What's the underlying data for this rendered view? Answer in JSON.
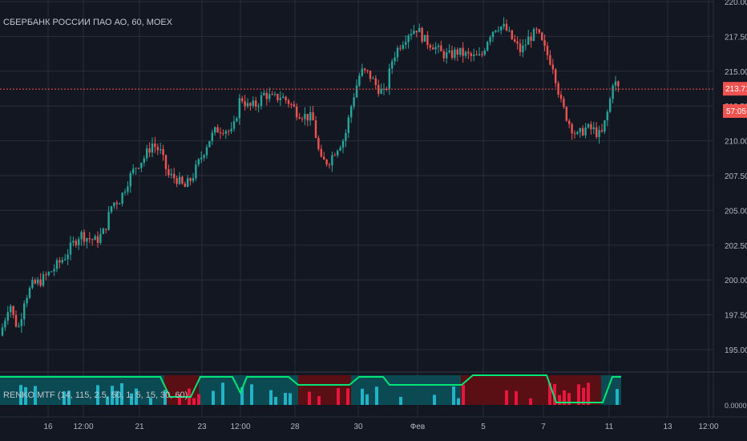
{
  "header": {
    "symbol_title": "СБЕРБАНК РОССИИ ПАО АО, 60, MOEX"
  },
  "indicator": {
    "title": "RENKO MTF (14, 115, 2.5, 50, 1, 5, 15, 30, 60)",
    "axis_label": "0.0000",
    "colors": {
      "bull": "#00e676",
      "bear": "#ff1744",
      "teal": "#26c6da",
      "dark_red": "#5a0f14",
      "dark_teal": "#0b4a52"
    }
  },
  "price_badges": {
    "last_price": "213.71",
    "countdown": "57:05",
    "color": "#ef5350"
  },
  "colors": {
    "up": "#26a69a",
    "down": "#ef5350",
    "background": "#131722",
    "grid": "#2a2e39"
  },
  "chart_data": {
    "type": "candlestick",
    "ylim": [
      193.5,
      220
    ],
    "y_ticks": [
      "220.00",
      "217.50",
      "215.00",
      "212.50",
      "210.00",
      "207.50",
      "205.00",
      "202.50",
      "200.00",
      "197.50",
      "195.00"
    ],
    "x_ticks": [
      "16",
      "12:00",
      "21",
      "23",
      "12:00",
      "28",
      "30",
      "Фев",
      "5",
      "7",
      "11",
      "13",
      "12:00"
    ],
    "last_price_line": 213.71,
    "close_path": [
      [
        0,
        196.0
      ],
      [
        6,
        197.2
      ],
      [
        12,
        198.5
      ],
      [
        18,
        197.0
      ],
      [
        24,
        196.6
      ],
      [
        30,
        198.6
      ],
      [
        40,
        199.6
      ],
      [
        50,
        199.9
      ],
      [
        60,
        200.4
      ],
      [
        70,
        201.0
      ],
      [
        80,
        201.6
      ],
      [
        90,
        202.5
      ],
      [
        100,
        203.3
      ],
      [
        110,
        203.0
      ],
      [
        120,
        202.8
      ],
      [
        130,
        203.5
      ],
      [
        140,
        205.5
      ],
      [
        150,
        205.8
      ],
      [
        160,
        207.2
      ],
      [
        170,
        208.2
      ],
      [
        180,
        208.8
      ],
      [
        190,
        209.8
      ],
      [
        200,
        209.2
      ],
      [
        210,
        207.5
      ],
      [
        220,
        207.3
      ],
      [
        230,
        206.6
      ],
      [
        240,
        207.4
      ],
      [
        250,
        208.7
      ],
      [
        260,
        210.0
      ],
      [
        270,
        210.8
      ],
      [
        280,
        210.9
      ],
      [
        290,
        210.5
      ],
      [
        300,
        213.2
      ],
      [
        310,
        212.4
      ],
      [
        320,
        212.6
      ],
      [
        330,
        213.4
      ],
      [
        340,
        213.0
      ],
      [
        350,
        213.2
      ],
      [
        360,
        212.8
      ],
      [
        370,
        212.1
      ],
      [
        380,
        211.8
      ],
      [
        390,
        211.6
      ],
      [
        400,
        208.5
      ],
      [
        410,
        208.5
      ],
      [
        420,
        209.5
      ],
      [
        430,
        210.2
      ],
      [
        440,
        213.0
      ],
      [
        450,
        215.0
      ],
      [
        460,
        214.8
      ],
      [
        470,
        213.9
      ],
      [
        480,
        213.3
      ],
      [
        490,
        216.0
      ],
      [
        500,
        217.0
      ],
      [
        510,
        217.8
      ],
      [
        520,
        218.1
      ],
      [
        530,
        217.2
      ],
      [
        540,
        216.9
      ],
      [
        550,
        216.3
      ],
      [
        560,
        216.1
      ],
      [
        570,
        216.4
      ],
      [
        580,
        216.2
      ],
      [
        590,
        216.0
      ],
      [
        600,
        216.0
      ],
      [
        610,
        217.6
      ],
      [
        620,
        218.3
      ],
      [
        630,
        218.1
      ],
      [
        640,
        217.2
      ],
      [
        650,
        216.4
      ],
      [
        660,
        217.4
      ],
      [
        670,
        217.8
      ],
      [
        680,
        216.5
      ],
      [
        690,
        215.4
      ],
      [
        700,
        212.7
      ],
      [
        710,
        211.3
      ],
      [
        720,
        210.3
      ],
      [
        730,
        210.9
      ],
      [
        740,
        210.8
      ],
      [
        750,
        210.3
      ],
      [
        760,
        212.5
      ],
      [
        765,
        214.4
      ],
      [
        772,
        213.7
      ]
    ],
    "x_range": [
      0,
      932
    ]
  }
}
